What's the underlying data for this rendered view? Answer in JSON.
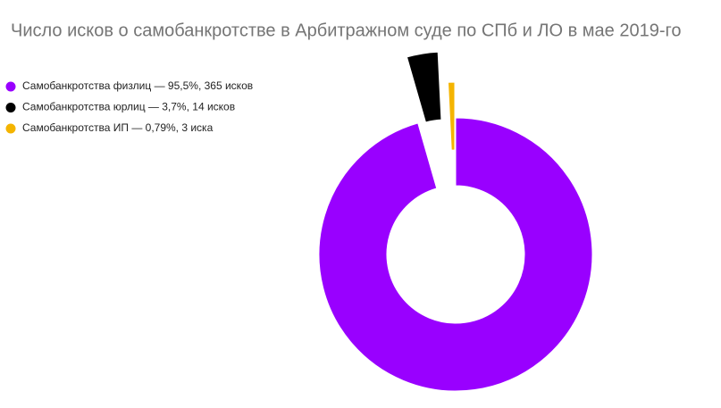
{
  "chart_data": {
    "type": "donut",
    "title": "Число исков о самобанкротстве в Арбитражном суде по СПб и ЛО в мае 2019-го",
    "categories": [
      "Самобанкротства физлиц — 95,5%, 365 исков",
      "Самобанкротства юрлиц — 3,7%, 14 исков",
      "Самобанкротства ИП — 0,79%, 3 иска"
    ],
    "values": [
      365,
      14,
      3
    ],
    "colors": [
      "#9900ff",
      "#000000",
      "#f4b400"
    ],
    "legend": "left"
  }
}
